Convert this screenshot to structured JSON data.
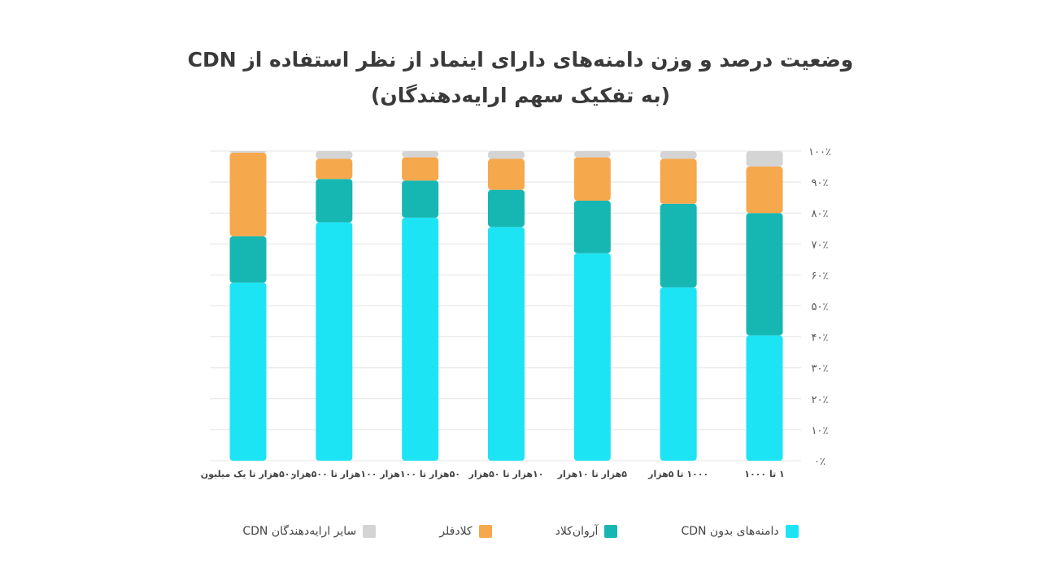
{
  "title_line1": "وضعیت درصد و وزن دامنه‌های دارای اینماد از نظر استفاده از CDN",
  "title_line2": "(به تفکیک سهم ارایه‌دهندگان)",
  "chart_data": {
    "type": "bar",
    "stacked": true,
    "categories": [
      "۵۰۰هزار تا یک میلیون",
      "۱۰۰هزار تا ۵۰۰هزار",
      "۵۰هزار تا ۱۰۰هزار",
      "۱۰هزار تا ۵۰هزار",
      "۵هزار تا ۱۰هزار",
      "۱۰۰۰ تا ۵هزار",
      "۱ تا ۱۰۰۰"
    ],
    "y_ticks": [
      "۰٪",
      "۱۰٪",
      "۲۰٪",
      "۳۰٪",
      "۴۰٪",
      "۵۰٪",
      "۶۰٪",
      "۷۰٪",
      "۸۰٪",
      "۹۰٪",
      "۱۰۰٪"
    ],
    "ylim": [
      0,
      100
    ],
    "grid": true,
    "legend_position": "bottom",
    "series": [
      {
        "name": "دامنه‌های بدون CDN",
        "color": "#1de4f5",
        "values": [
          57.5,
          77,
          78.5,
          75.5,
          67,
          56,
          40.5
        ]
      },
      {
        "name": "آروان‌کلاد",
        "color": "#16b7b3",
        "values": [
          15,
          14,
          12,
          12,
          17,
          27,
          39.5
        ]
      },
      {
        "name": "کلادفلر",
        "color": "#f6a84c",
        "values": [
          27,
          6.5,
          7.5,
          10,
          14,
          14.5,
          15
        ]
      },
      {
        "name": "سایر ارایه‌دهندگان CDN",
        "color": "#d4d4d4",
        "values": [
          0.5,
          2.5,
          2,
          2.5,
          2,
          2.5,
          5
        ]
      }
    ]
  }
}
